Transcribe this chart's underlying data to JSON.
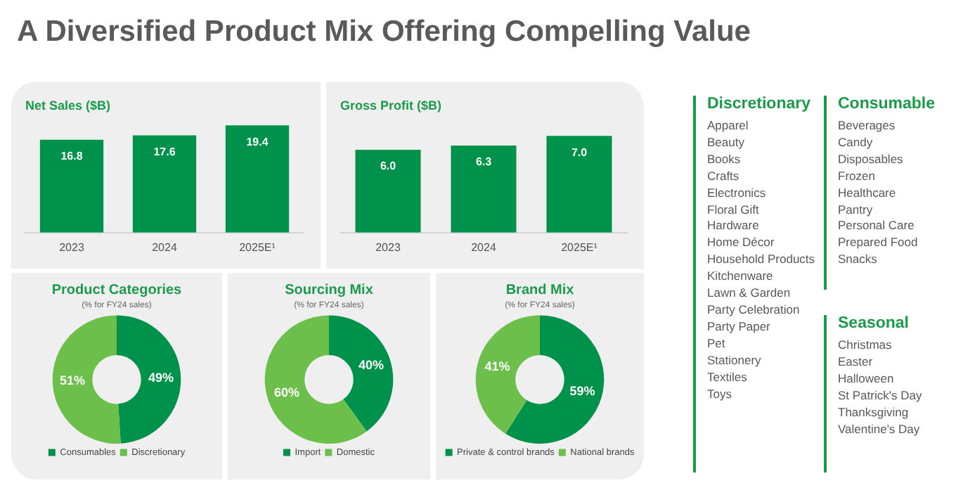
{
  "chart_data": [
    {
      "type": "other",
      "title": "A Diversified Product Mix Offering Compelling Value"
    },
    {
      "type": "bar",
      "title": "Net Sales ($B)",
      "categories": [
        "2023",
        "2024",
        "2025E¹"
      ],
      "values": [
        16.8,
        17.6,
        19.4
      ],
      "value_labels": [
        "16.8",
        "17.6",
        "19.4"
      ],
      "color": "#00924a",
      "tick_labels": "x",
      "grid": false,
      "legend": false
    },
    {
      "type": "bar",
      "title": "Gross Profit ($B)",
      "categories": [
        "2023",
        "2024",
        "2025E¹"
      ],
      "values": [
        6.0,
        6.3,
        7.0
      ],
      "value_labels": [
        "6.0",
        "6.3",
        "7.0"
      ],
      "color": "#00924a",
      "tick_labels": "x",
      "grid": false,
      "legend": false
    },
    {
      "type": "donut",
      "title": "Product Categories",
      "subtitle": "(% for FY24 sales)",
      "categories": [
        "Consumables",
        "Discretionary"
      ],
      "values": [
        49,
        51
      ],
      "value_labels": [
        "49%",
        "51%"
      ],
      "colors": [
        "#00924a",
        "#6cbf4a"
      ],
      "legend": "bottom"
    },
    {
      "type": "donut",
      "title": "Sourcing Mix",
      "subtitle": "(% for FY24 sales)",
      "categories": [
        "Import",
        "Domestic"
      ],
      "values": [
        40,
        60
      ],
      "value_labels": [
        "40%",
        "60%"
      ],
      "colors": [
        "#00924a",
        "#6cbf4a"
      ],
      "legend": "bottom"
    },
    {
      "type": "donut",
      "title": "Brand Mix",
      "subtitle": "(% for FY24 sales)",
      "categories": [
        "Private & control brands",
        "National brands"
      ],
      "values": [
        59,
        41
      ],
      "value_labels": [
        "59%",
        "41%"
      ],
      "colors": [
        "#00924a",
        "#6cbf4a"
      ],
      "legend": "bottom"
    },
    {
      "type": "other",
      "title": "Discretionary",
      "annotations": [
        "Apparel",
        "Beauty",
        "Books",
        "Crafts",
        "Electronics",
        "Floral Gift",
        "Hardware",
        "Home Décor",
        "Household Products",
        "Kitchenware",
        "Lawn & Garden",
        "Party Celebration",
        "Party Paper",
        "Pet",
        "Stationery",
        "Textiles",
        "Toys"
      ]
    },
    {
      "type": "other",
      "title": "Consumable",
      "annotations": [
        "Beverages",
        "Candy",
        "Disposables",
        "Frozen",
        "Healthcare",
        "Pantry",
        "Personal Care",
        "Prepared Food",
        "Snacks"
      ]
    },
    {
      "type": "other",
      "title": "Seasonal",
      "annotations": [
        "Christmas",
        "Easter",
        "Halloween",
        "St Patrick's Day",
        "Thanksgiving",
        "Valentine's Day"
      ]
    }
  ]
}
